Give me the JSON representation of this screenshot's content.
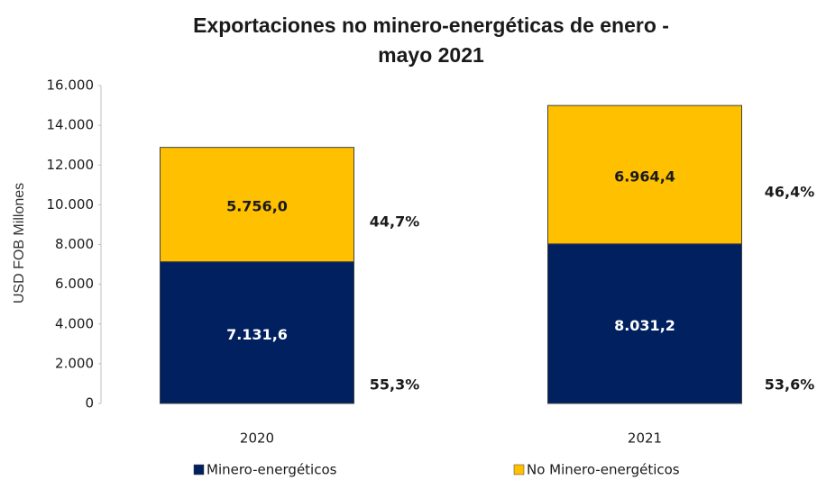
{
  "chart_data": {
    "type": "stacked_bar",
    "title": [
      "Exportaciones no minero-energéticas de enero -",
      "mayo 2021"
    ],
    "y_label": "USD FOB Millones",
    "categories": [
      "2020",
      "2021"
    ],
    "series": [
      {
        "name": "Minero-energéticos",
        "color": "#002060",
        "label_color": "#ffffff",
        "values": [
          7131.6,
          8031.2
        ],
        "value_labels": [
          "7.131,6",
          "8.031,2"
        ],
        "shares": [
          55.3,
          53.6
        ],
        "share_labels": [
          "55,3%",
          "53,6%"
        ]
      },
      {
        "name": "No Minero-energéticos",
        "color": "#ffc000",
        "label_color": "#1a1a1a",
        "values": [
          5756.0,
          6964.4
        ],
        "value_labels": [
          "5.756,0",
          "6.964,4"
        ],
        "shares": [
          44.7,
          46.4
        ],
        "share_labels": [
          "44,7%",
          "46,4%"
        ]
      }
    ],
    "ylim": [
      0,
      16000
    ],
    "yticks": [
      0,
      {
        "value": 2000,
        "label": "2.000"
      },
      {
        "value": 4000,
        "label": "4.000"
      },
      {
        "value": 6000,
        "label": "6.000"
      },
      {
        "value": 8000,
        "label": "8.000"
      },
      {
        "value": 10000,
        "label": "10.000"
      },
      {
        "value": 12000,
        "label": "12.000"
      },
      {
        "value": 14000,
        "label": "14.000"
      },
      {
        "value": 16000,
        "label": "16.000"
      }
    ],
    "grid": false,
    "legend": "bottom"
  }
}
